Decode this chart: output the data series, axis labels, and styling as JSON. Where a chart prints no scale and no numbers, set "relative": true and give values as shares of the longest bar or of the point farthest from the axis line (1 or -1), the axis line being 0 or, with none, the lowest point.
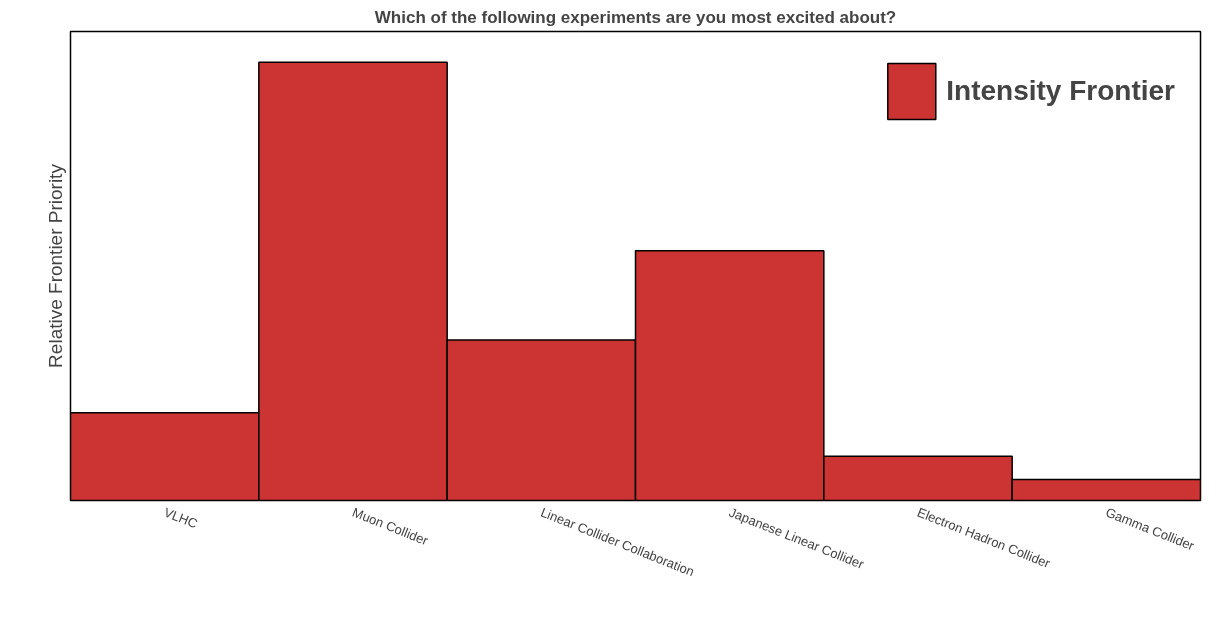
{
  "chart_data": {
    "type": "bar",
    "title": "Which of the following experiments are you most excited about?",
    "ylabel": "Relative Frontier Priority",
    "relative": true,
    "categories": [
      "VLHC",
      "Muon Collider",
      "Linear Collider Collaboration",
      "Japanese Linear Collider",
      "Electron Hadron Collider",
      "Gamma Collider"
    ],
    "series": [
      {
        "name": "Intensity Frontier",
        "color": "#cc3333",
        "values": [
          0.2,
          1,
          0.366,
          0.57,
          0.101,
          0.048
        ]
      }
    ],
    "legend": "top right",
    "grid": false
  }
}
